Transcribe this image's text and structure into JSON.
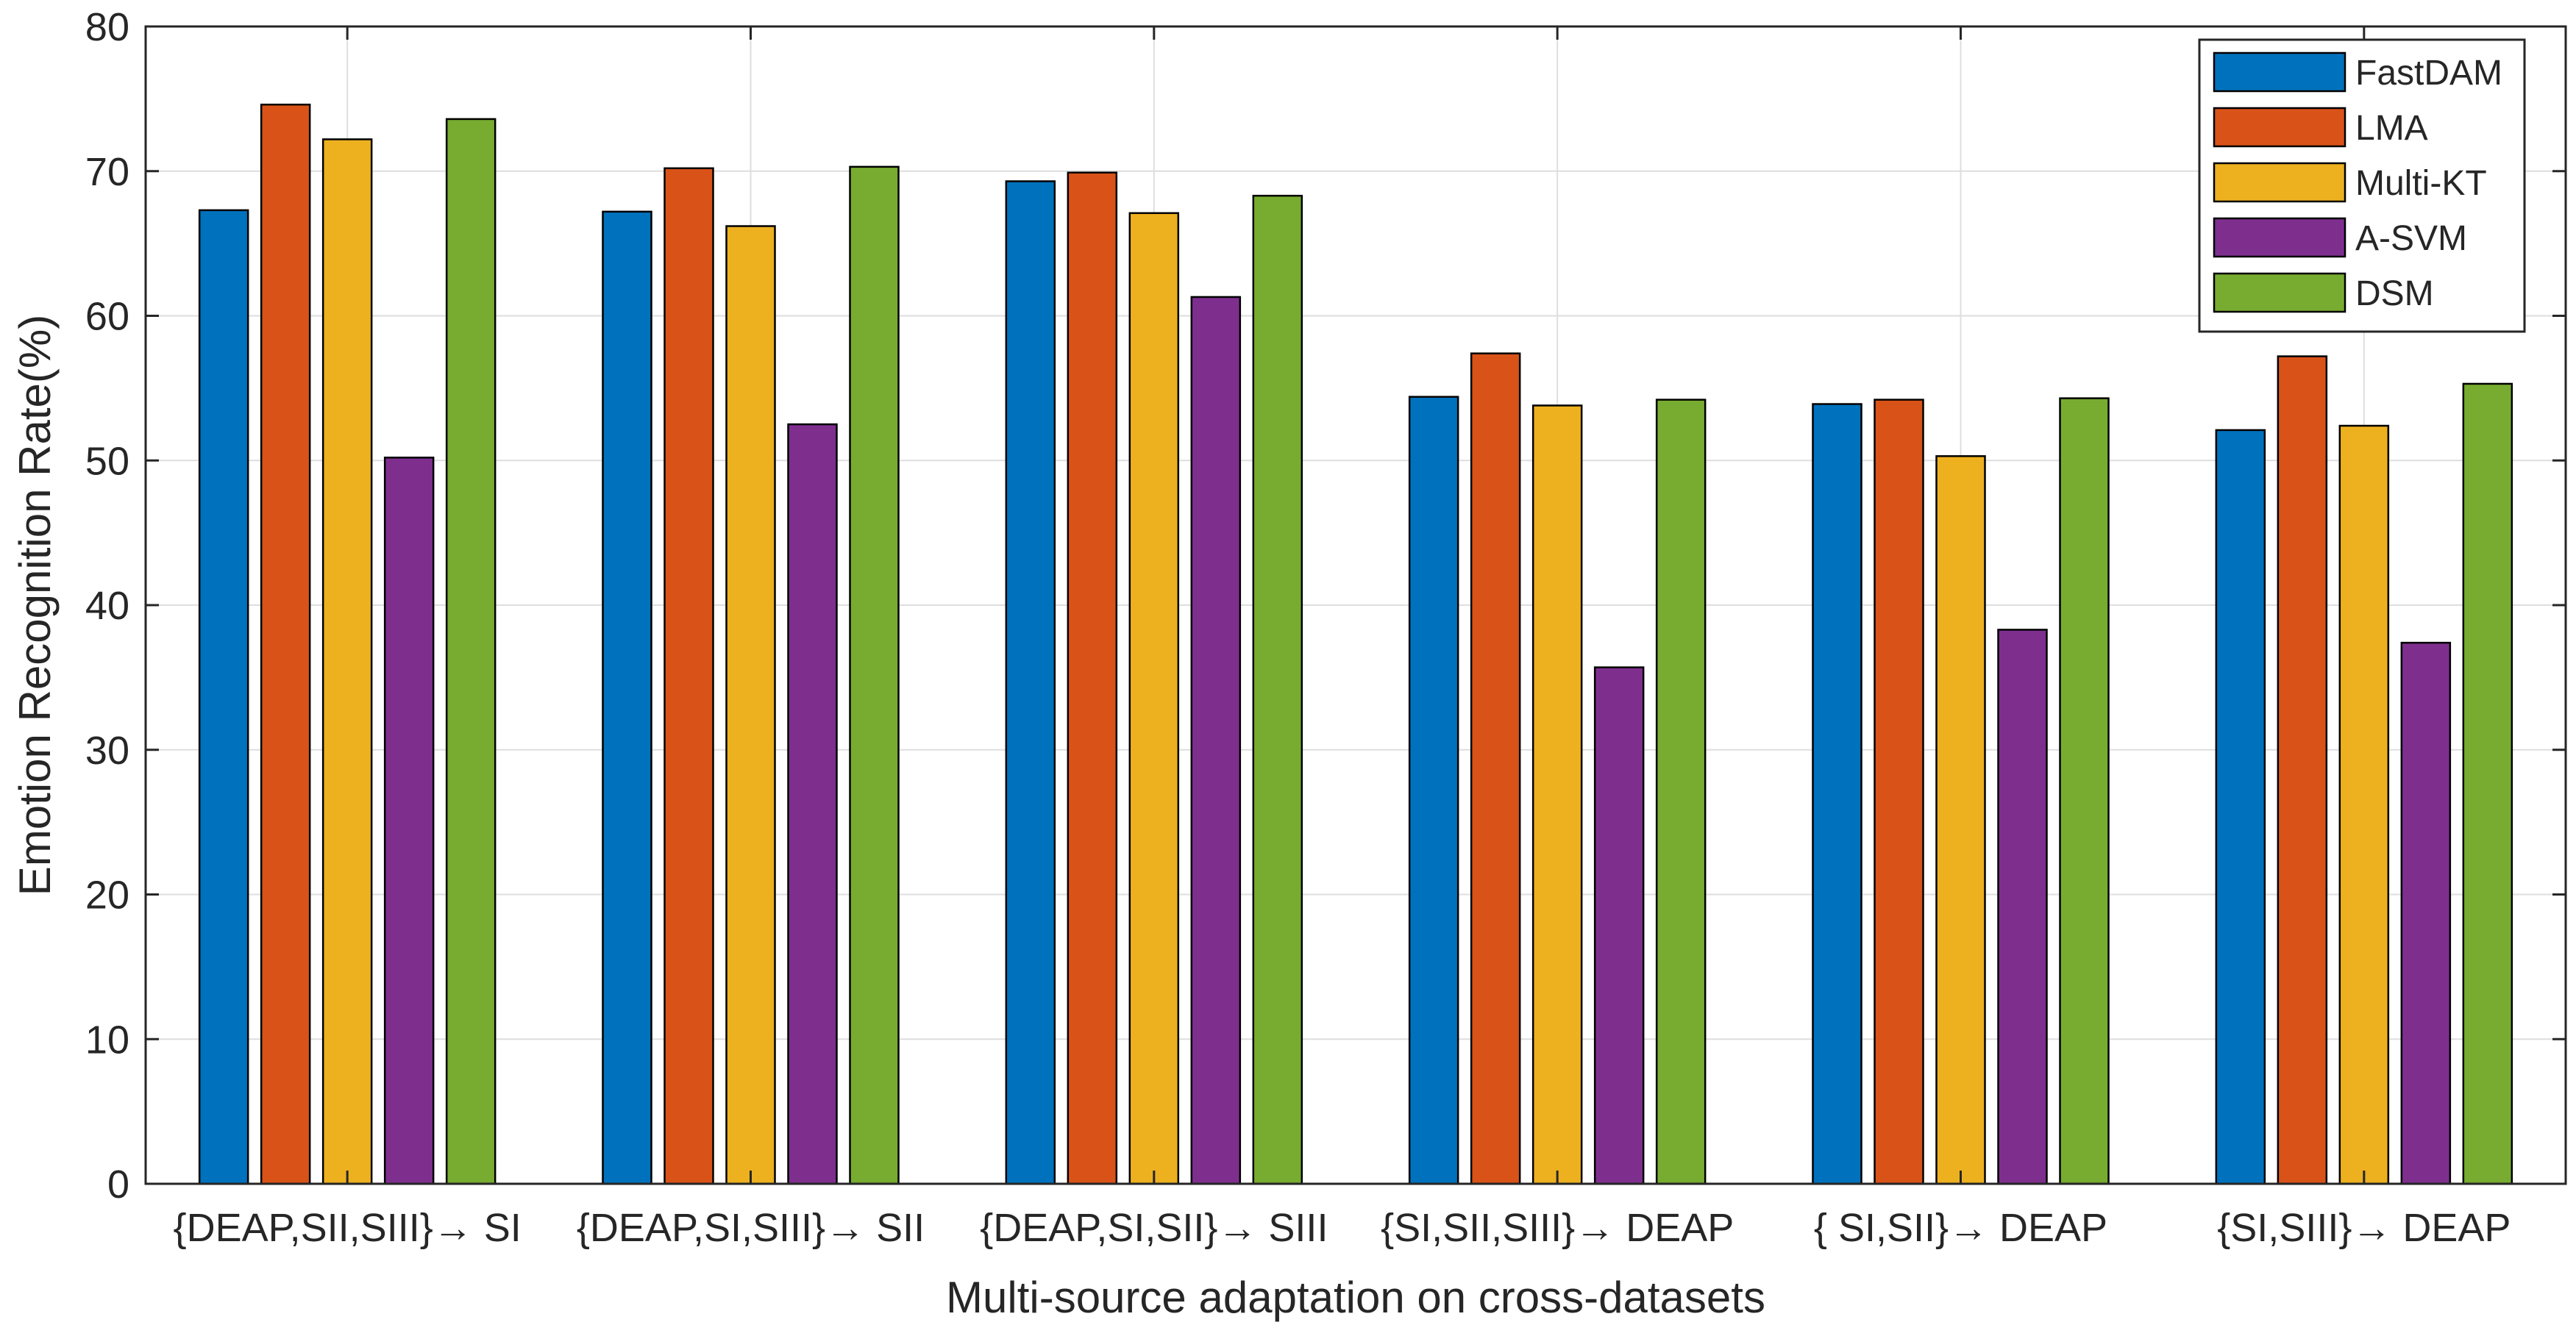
{
  "chart_data": {
    "type": "bar",
    "title": "",
    "xlabel": "Multi-source adaptation on cross-datasets",
    "ylabel": "Emotion Recognition Rate(%)",
    "ylim": [
      0,
      80
    ],
    "yticks": [
      0,
      10,
      20,
      30,
      40,
      50,
      60,
      70,
      80
    ],
    "grid": true,
    "legend_position": "top-right",
    "categories": [
      "{DEAP,SII,SIII}→ SI",
      "{DEAP,SI,SIII}→ SII",
      "{DEAP,SI,SII}→ SIII",
      "{SI,SII,SIII}→ DEAP",
      "{ SI,SII}→ DEAP",
      "{SI,SIII}→ DEAP"
    ],
    "series": [
      {
        "name": "FastDAM",
        "color": "#0072BD",
        "values": [
          67.3,
          67.2,
          69.3,
          54.4,
          53.9,
          52.1
        ]
      },
      {
        "name": "LMA",
        "color": "#D95319",
        "values": [
          74.6,
          70.2,
          69.9,
          57.4,
          54.2,
          57.2
        ]
      },
      {
        "name": "Multi-KT",
        "color": "#EDB120",
        "values": [
          72.2,
          66.2,
          67.1,
          53.8,
          50.3,
          52.4
        ]
      },
      {
        "name": "A-SVM",
        "color": "#7E2F8E",
        "values": [
          50.2,
          52.5,
          61.3,
          35.7,
          38.3,
          37.4
        ]
      },
      {
        "name": "DSM",
        "color": "#77AC30",
        "values": [
          73.6,
          70.3,
          68.3,
          54.2,
          54.3,
          55.3
        ]
      }
    ]
  }
}
